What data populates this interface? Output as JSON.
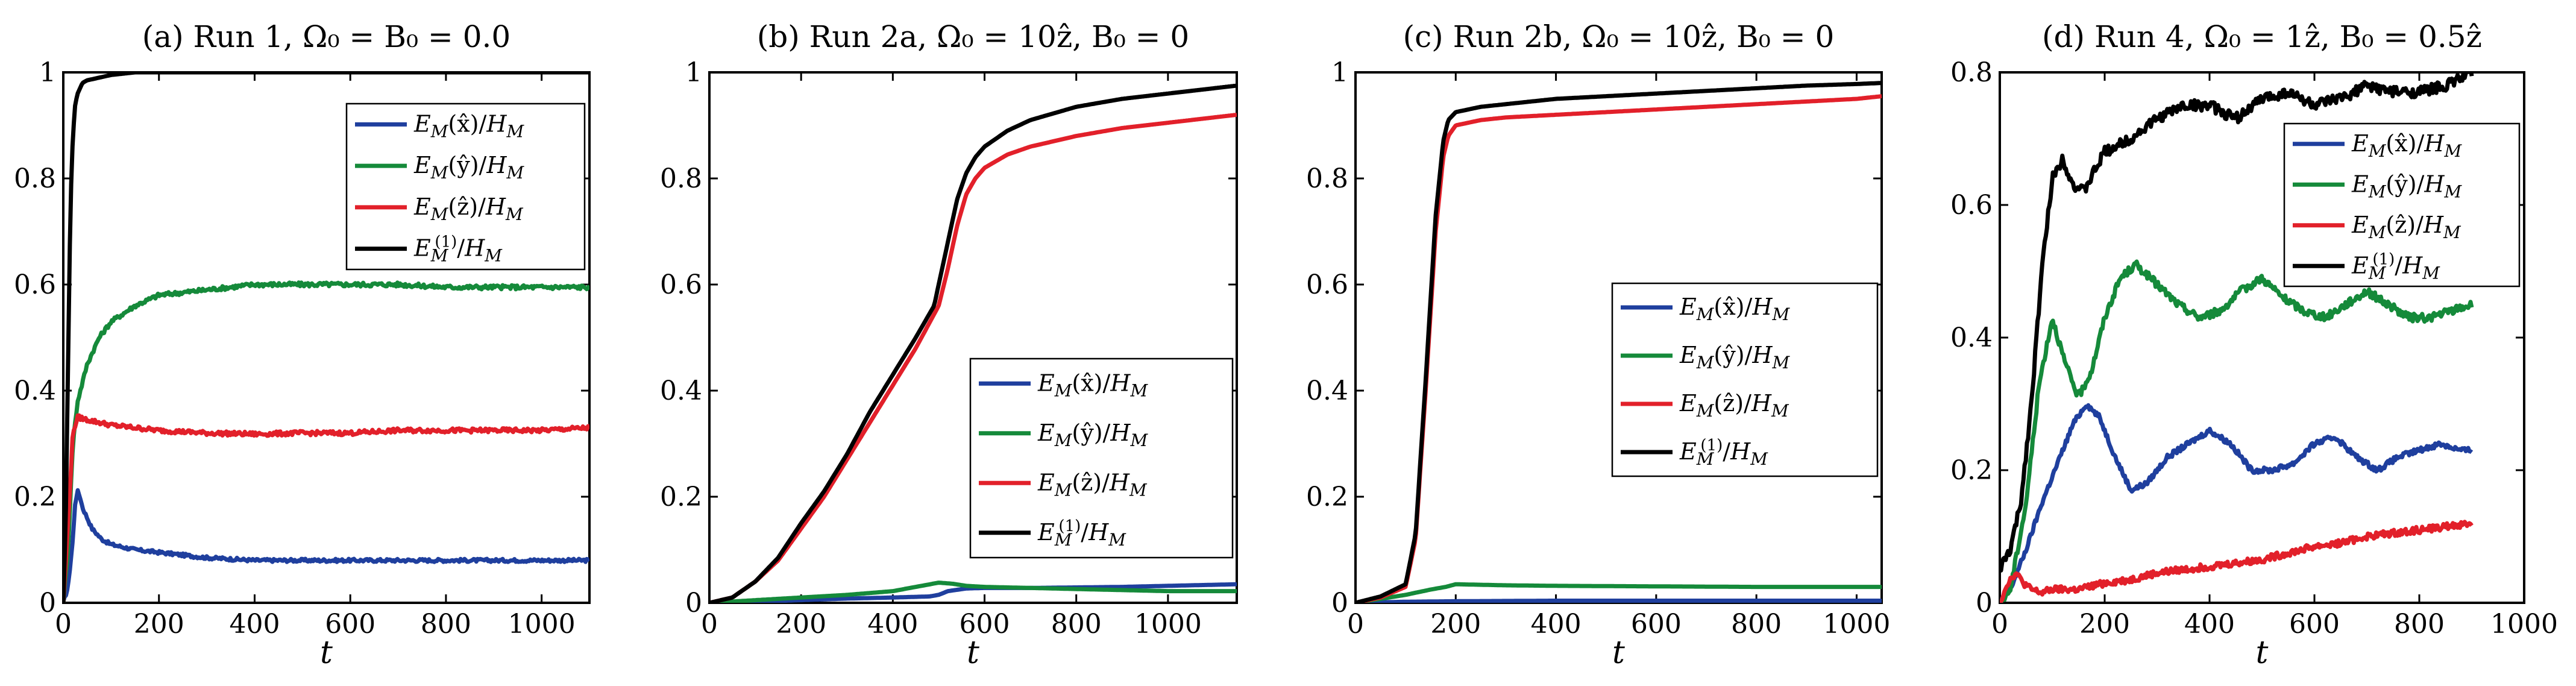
{
  "colors": {
    "x": "#1f3f9e",
    "y": "#158a3a",
    "z": "#e2202a",
    "one": "#000000"
  },
  "chart_data": [
    {
      "type": "line",
      "title": "(a) Run 1, Ω₀ = B₀ = 0.0",
      "xlabel": "t",
      "xlim": [
        0,
        1100
      ],
      "ylim": [
        0,
        1
      ],
      "xticks": [
        0,
        200,
        400,
        600,
        800,
        1000
      ],
      "yticks": [
        0,
        0.2,
        0.4,
        0.6,
        0.8,
        1
      ],
      "xtick_labels": [
        "0",
        "200",
        "400",
        "600",
        "800",
        "1000"
      ],
      "ytick_labels": [
        "0",
        "0.2",
        "0.4",
        "0.6",
        "0.8",
        "1"
      ],
      "legend_position": "upper-right",
      "series": [
        {
          "name": "E_M(x̂)/H_M",
          "key": "x",
          "x": [
            0,
            10,
            20,
            25,
            30,
            35,
            40,
            50,
            60,
            80,
            100,
            150,
            200,
            300,
            400,
            500,
            600,
            700,
            800,
            900,
            1000,
            1100
          ],
          "y": [
            0,
            0.03,
            0.12,
            0.19,
            0.21,
            0.2,
            0.18,
            0.16,
            0.14,
            0.12,
            0.11,
            0.1,
            0.095,
            0.085,
            0.08,
            0.08,
            0.08,
            0.08,
            0.08,
            0.08,
            0.08,
            0.08
          ],
          "noise": 0.003
        },
        {
          "name": "E_M(ŷ)/H_M",
          "key": "y",
          "x": [
            0,
            10,
            20,
            30,
            50,
            75,
            100,
            150,
            200,
            300,
            400,
            500,
            600,
            700,
            800,
            900,
            1000,
            1100
          ],
          "y": [
            0,
            0.1,
            0.3,
            0.38,
            0.45,
            0.5,
            0.53,
            0.56,
            0.58,
            0.59,
            0.6,
            0.6,
            0.6,
            0.6,
            0.595,
            0.595,
            0.595,
            0.595
          ],
          "noise": 0.004
        },
        {
          "name": "E_M(ẑ)/H_M",
          "key": "z",
          "x": [
            0,
            10,
            20,
            30,
            50,
            100,
            200,
            300,
            400,
            500,
            600,
            700,
            800,
            900,
            1000,
            1100
          ],
          "y": [
            0,
            0.15,
            0.32,
            0.35,
            0.345,
            0.335,
            0.325,
            0.32,
            0.318,
            0.32,
            0.32,
            0.325,
            0.325,
            0.325,
            0.325,
            0.33
          ],
          "noise": 0.004
        },
        {
          "name": "E_M^(1)/H_M",
          "key": "one",
          "x": [
            0,
            5,
            10,
            15,
            20,
            25,
            30,
            40,
            50,
            75,
            100,
            150,
            200,
            300,
            400,
            500,
            600,
            700,
            800,
            900,
            1000,
            1100
          ],
          "y": [
            0,
            0.15,
            0.45,
            0.75,
            0.88,
            0.94,
            0.96,
            0.98,
            0.985,
            0.99,
            0.995,
            1,
            1,
            1,
            1,
            1,
            1,
            1,
            1,
            1,
            1,
            1
          ],
          "noise": 0.0
        }
      ]
    },
    {
      "type": "line",
      "title": "(b) Run 2a, Ω₀ = 10ẑ, B₀ = 0",
      "xlabel": "t",
      "xlim": [
        0,
        1150
      ],
      "ylim": [
        0,
        1
      ],
      "xticks": [
        0,
        200,
        400,
        600,
        800,
        1000
      ],
      "yticks": [
        0,
        0.2,
        0.4,
        0.6,
        0.8,
        1
      ],
      "xtick_labels": [
        "0",
        "200",
        "400",
        "600",
        "800",
        "1000"
      ],
      "ytick_labels": [
        "0",
        "0.2",
        "0.4",
        "0.6",
        "0.8",
        "1"
      ],
      "legend_position": "lower-right",
      "series": [
        {
          "name": "E_M(x̂)/H_M",
          "key": "x",
          "x": [
            0,
            100,
            200,
            300,
            400,
            480,
            500,
            520,
            560,
            600,
            700,
            800,
            900,
            1000,
            1100,
            1150
          ],
          "y": [
            0,
            0.002,
            0.005,
            0.008,
            0.01,
            0.012,
            0.015,
            0.022,
            0.027,
            0.028,
            0.028,
            0.029,
            0.03,
            0.032,
            0.034,
            0.035
          ],
          "noise": 0.0
        },
        {
          "name": "E_M(ŷ)/H_M",
          "key": "y",
          "x": [
            0,
            100,
            200,
            300,
            400,
            450,
            500,
            530,
            560,
            600,
            700,
            800,
            900,
            1000,
            1100,
            1150
          ],
          "y": [
            0,
            0.005,
            0.01,
            0.015,
            0.022,
            0.03,
            0.038,
            0.036,
            0.032,
            0.03,
            0.028,
            0.026,
            0.024,
            0.022,
            0.022,
            0.022
          ],
          "noise": 0.0
        },
        {
          "name": "E_M(ẑ)/H_M",
          "key": "z",
          "x": [
            0,
            50,
            100,
            150,
            200,
            250,
            300,
            350,
            400,
            450,
            500,
            520,
            540,
            560,
            580,
            600,
            650,
            700,
            800,
            900,
            1000,
            1100,
            1150
          ],
          "y": [
            0,
            0.01,
            0.04,
            0.08,
            0.14,
            0.2,
            0.27,
            0.34,
            0.41,
            0.48,
            0.56,
            0.63,
            0.71,
            0.77,
            0.8,
            0.82,
            0.845,
            0.86,
            0.88,
            0.895,
            0.905,
            0.915,
            0.92
          ],
          "noise": 0.0
        },
        {
          "name": "E_M^(1)/H_M",
          "key": "one",
          "x": [
            0,
            50,
            100,
            150,
            200,
            250,
            300,
            350,
            400,
            450,
            490,
            520,
            540,
            560,
            580,
            600,
            650,
            700,
            800,
            900,
            1000,
            1100,
            1150
          ],
          "y": [
            0,
            0.01,
            0.04,
            0.085,
            0.15,
            0.21,
            0.28,
            0.36,
            0.43,
            0.5,
            0.56,
            0.68,
            0.76,
            0.81,
            0.84,
            0.86,
            0.89,
            0.91,
            0.935,
            0.95,
            0.96,
            0.97,
            0.975
          ],
          "noise": 0.0
        }
      ]
    },
    {
      "type": "line",
      "title": "(c) Run 2b, Ω₀ = 10ẑ, B₀ = 0",
      "xlabel": "t",
      "xlim": [
        0,
        1050
      ],
      "ylim": [
        0,
        1
      ],
      "xticks": [
        0,
        200,
        400,
        600,
        800,
        1000
      ],
      "yticks": [
        0,
        0.2,
        0.4,
        0.6,
        0.8,
        1
      ],
      "xtick_labels": [
        "0",
        "200",
        "400",
        "600",
        "800",
        "1000"
      ],
      "ytick_labels": [
        "0",
        "0.2",
        "0.4",
        "0.6",
        "0.8",
        "1"
      ],
      "legend_position": "center-right",
      "series": [
        {
          "name": "E_M(x̂)/H_M",
          "key": "x",
          "x": [
            0,
            100,
            200,
            400,
            600,
            800,
            1000,
            1050
          ],
          "y": [
            0,
            0.002,
            0.003,
            0.004,
            0.004,
            0.004,
            0.004,
            0.004
          ],
          "noise": 0.0
        },
        {
          "name": "E_M(ŷ)/H_M",
          "key": "y",
          "x": [
            0,
            100,
            150,
            180,
            200,
            300,
            400,
            600,
            800,
            1000,
            1050
          ],
          "y": [
            0,
            0.015,
            0.025,
            0.03,
            0.035,
            0.033,
            0.032,
            0.031,
            0.03,
            0.03,
            0.03
          ],
          "noise": 0.0
        },
        {
          "name": "E_M(ẑ)/H_M",
          "key": "z",
          "x": [
            0,
            50,
            100,
            120,
            140,
            160,
            175,
            185,
            200,
            250,
            300,
            400,
            500,
            600,
            700,
            800,
            900,
            1000,
            1050
          ],
          "y": [
            0,
            0.01,
            0.03,
            0.12,
            0.4,
            0.7,
            0.84,
            0.88,
            0.9,
            0.91,
            0.915,
            0.92,
            0.925,
            0.93,
            0.935,
            0.94,
            0.945,
            0.95,
            0.955
          ],
          "noise": 0.0
        },
        {
          "name": "E_M^(1)/H_M",
          "key": "one",
          "x": [
            0,
            50,
            100,
            120,
            140,
            160,
            175,
            185,
            200,
            250,
            300,
            400,
            500,
            600,
            700,
            800,
            900,
            1000,
            1050
          ],
          "y": [
            0,
            0.012,
            0.035,
            0.13,
            0.42,
            0.73,
            0.87,
            0.91,
            0.925,
            0.935,
            0.94,
            0.95,
            0.955,
            0.96,
            0.965,
            0.97,
            0.975,
            0.978,
            0.98
          ],
          "noise": 0.0
        }
      ]
    },
    {
      "type": "line",
      "title": "(d) Run 4, Ω₀ = 1ẑ, B₀ = 0.5ẑ",
      "xlabel": "t",
      "xlim": [
        0,
        1000
      ],
      "ylim": [
        0,
        0.8
      ],
      "xticks": [
        0,
        200,
        400,
        600,
        800,
        1000
      ],
      "yticks": [
        0,
        0.2,
        0.4,
        0.6,
        0.8
      ],
      "xtick_labels": [
        "0",
        "200",
        "400",
        "600",
        "800",
        "1000"
      ],
      "ytick_labels": [
        "0",
        "0.2",
        "0.4",
        "0.6",
        "0.8"
      ],
      "legend_position": "upper-right",
      "series": [
        {
          "name": "E_M(x̂)/H_M",
          "key": "x",
          "x": [
            0,
            20,
            50,
            80,
            110,
            140,
            165,
            190,
            220,
            250,
            280,
            320,
            360,
            400,
            440,
            480,
            520,
            560,
            600,
            640,
            680,
            720,
            760,
            800,
            840,
            880,
            900
          ],
          "y": [
            0,
            0.02,
            0.08,
            0.15,
            0.21,
            0.27,
            0.3,
            0.28,
            0.22,
            0.17,
            0.18,
            0.22,
            0.24,
            0.26,
            0.24,
            0.2,
            0.2,
            0.21,
            0.24,
            0.25,
            0.22,
            0.2,
            0.22,
            0.23,
            0.24,
            0.23,
            0.23
          ],
          "noise": 0.004
        },
        {
          "name": "E_M(ŷ)/H_M",
          "key": "y",
          "x": [
            0,
            20,
            50,
            75,
            100,
            125,
            150,
            175,
            200,
            230,
            260,
            300,
            340,
            380,
            420,
            460,
            500,
            540,
            580,
            620,
            660,
            700,
            740,
            780,
            820,
            860,
            900
          ],
          "y": [
            0,
            0.02,
            0.15,
            0.33,
            0.43,
            0.36,
            0.31,
            0.35,
            0.43,
            0.49,
            0.51,
            0.48,
            0.45,
            0.43,
            0.44,
            0.47,
            0.49,
            0.46,
            0.44,
            0.43,
            0.45,
            0.47,
            0.45,
            0.43,
            0.43,
            0.44,
            0.45
          ],
          "noise": 0.006
        },
        {
          "name": "E_M(ẑ)/H_M",
          "key": "z",
          "x": [
            0,
            15,
            30,
            45,
            60,
            80,
            100,
            150,
            200,
            250,
            300,
            350,
            400,
            450,
            500,
            550,
            600,
            650,
            700,
            750,
            800,
            850,
            900
          ],
          "y": [
            0,
            0.03,
            0.045,
            0.03,
            0.02,
            0.015,
            0.02,
            0.02,
            0.03,
            0.035,
            0.045,
            0.05,
            0.055,
            0.06,
            0.065,
            0.075,
            0.085,
            0.09,
            0.1,
            0.105,
            0.11,
            0.115,
            0.12
          ],
          "noise": 0.005
        },
        {
          "name": "E_M^(1)/H_M",
          "key": "one",
          "x": [
            0,
            20,
            40,
            60,
            80,
            100,
            120,
            140,
            160,
            200,
            250,
            300,
            350,
            400,
            450,
            500,
            550,
            600,
            650,
            700,
            750,
            800,
            850,
            900
          ],
          "y": [
            0.05,
            0.08,
            0.15,
            0.3,
            0.5,
            0.64,
            0.67,
            0.63,
            0.62,
            0.68,
            0.7,
            0.73,
            0.75,
            0.75,
            0.73,
            0.76,
            0.77,
            0.75,
            0.76,
            0.78,
            0.77,
            0.77,
            0.78,
            0.8
          ],
          "noise": 0.008
        }
      ]
    }
  ],
  "legends": [
    {
      "items": [
        {
          "key": "x",
          "label": "E_M(x̂)/H_M"
        },
        {
          "key": "y",
          "label": "E_M(ŷ)/H_M"
        },
        {
          "key": "z",
          "label": "E_M(ẑ)/H_M"
        },
        {
          "key": "one",
          "label": "E_M^(1)/H_M"
        }
      ]
    }
  ]
}
